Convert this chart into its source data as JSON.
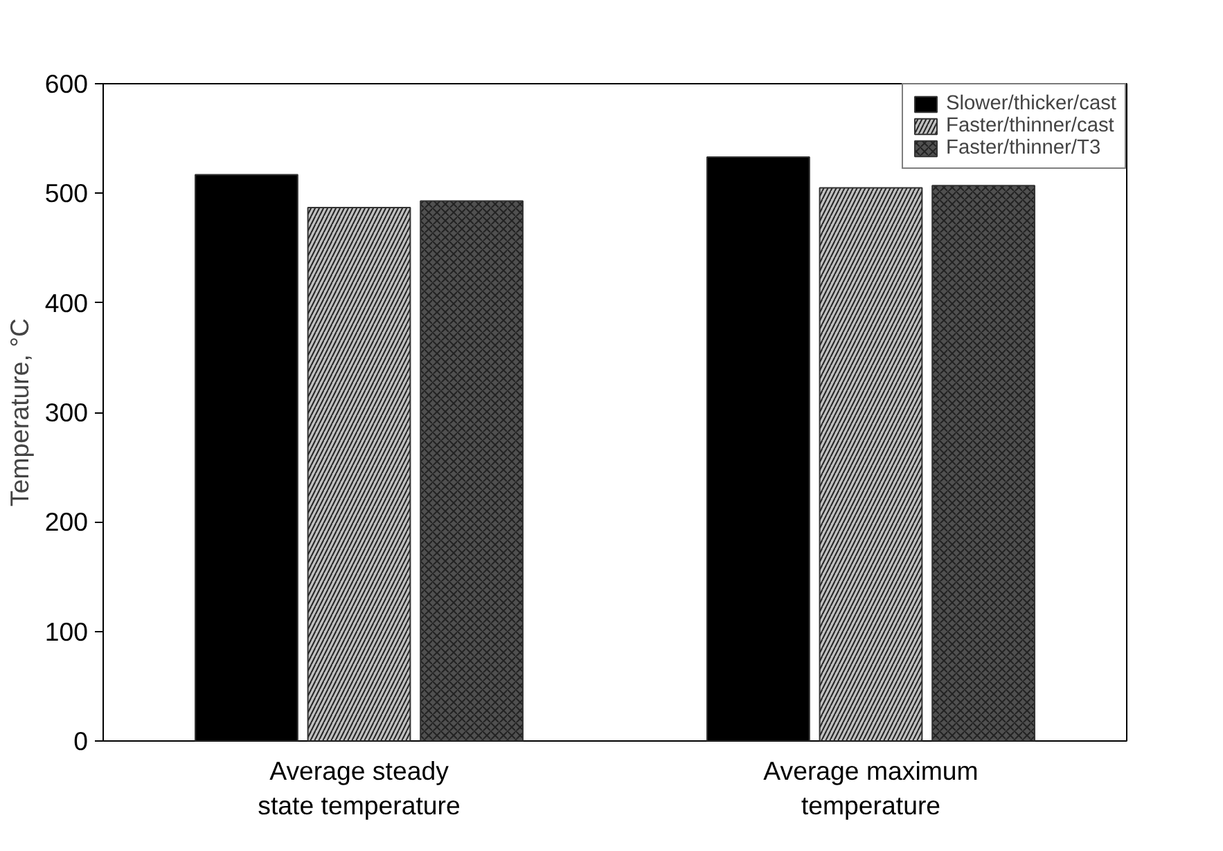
{
  "chart_data": {
    "type": "bar",
    "ylabel": "Temperature, °C",
    "categories": [
      "Average steady\nstate temperature",
      "Average maximum\ntemperature"
    ],
    "series": [
      {
        "name": "Slower/thicker/cast",
        "color": "#000000",
        "values": [
          517,
          533
        ]
      },
      {
        "name": "Faster/thinner/cast",
        "color": "#c0c0c0",
        "values": [
          487,
          505
        ]
      },
      {
        "name": "Faster/thinner/T3",
        "color": "#505050",
        "values": [
          493,
          507
        ]
      }
    ],
    "ylim": [
      0,
      600
    ],
    "yticks": [
      0,
      100,
      200,
      300,
      400,
      500,
      600
    ],
    "grid": false,
    "legend": "top right"
  }
}
